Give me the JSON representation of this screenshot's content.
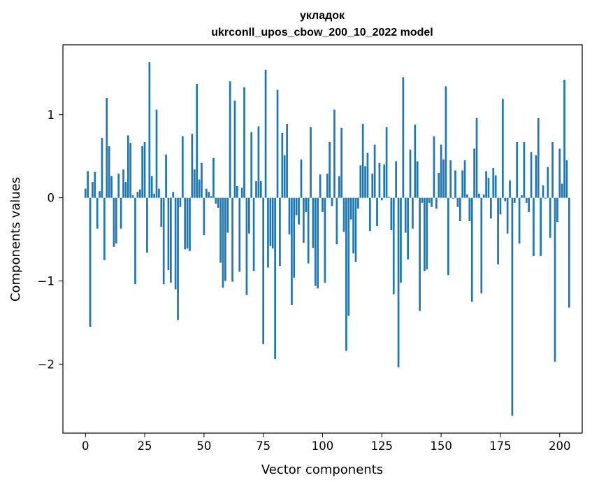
{
  "chart_data": {
    "type": "bar",
    "title_line1": "укладок",
    "title_line2": "ukrconll_upos_cbow_200_10_2022 model",
    "xlabel": "Vector components",
    "ylabel": "Components values",
    "xlim": [
      -9.5,
      209.5
    ],
    "ylim": [
      -2.83,
      1.84
    ],
    "xticks": [
      0,
      25,
      50,
      75,
      100,
      125,
      150,
      175,
      200
    ],
    "yticks": [
      -2,
      -1,
      0,
      1
    ],
    "ytick_labels": [
      "−2",
      "−1",
      "0",
      "1"
    ],
    "bar_color": "#1f77b4",
    "values": [
      0.11,
      0.32,
      -1.55,
      0.19,
      0.31,
      -0.37,
      0.08,
      0.72,
      -0.75,
      1.2,
      0.62,
      0.26,
      -0.59,
      -0.55,
      0.29,
      -0.37,
      0.34,
      0.19,
      0.75,
      0.66,
      0.03,
      -1.04,
      0.07,
      0.1,
      0.62,
      0.67,
      -0.66,
      1.63,
      0.26,
      0.05,
      1.06,
      0.11,
      -0.35,
      -1.04,
      0.52,
      -0.87,
      -1.02,
      0.07,
      -1.1,
      -1.47,
      -0.11,
      0.74,
      -0.62,
      -0.61,
      -0.64,
      0.77,
      0.34,
      1.37,
      0.22,
      0.42,
      -0.45,
      0.11,
      0.07,
      0.02,
      0.48,
      -0.07,
      -0.12,
      -0.78,
      -1.08,
      -1.0,
      -0.42,
      1.4,
      -1.01,
      1.17,
      0.14,
      -0.89,
      0.12,
      1.33,
      -1.17,
      -0.43,
      0.79,
      -0.88,
      0.2,
      0.86,
      0.2,
      -1.76,
      1.54,
      -0.84,
      -0.58,
      -0.61,
      -1.94,
      1.3,
      -0.82,
      0.78,
      0.51,
      0.89,
      -0.44,
      -1.29,
      -0.96,
      -0.21,
      -0.32,
      0.46,
      -0.54,
      -0.17,
      -0.79,
      0.85,
      -0.6,
      -1.06,
      -1.09,
      0.28,
      -0.17,
      -1.02,
      0.29,
      0.67,
      -0.1,
      1.06,
      -0.56,
      0.26,
      0.84,
      -0.41,
      -1.84,
      -1.42,
      -0.26,
      -0.67,
      -0.77,
      -0.13,
      0.39,
      0.89,
      0.38,
      0.54,
      -0.4,
      0.29,
      0.64,
      -0.34,
      0.42,
      -0.03,
      0.4,
      0.85,
      0.01,
      -0.39,
      -1.16,
      0.44,
      -2.04,
      -1.02,
      1.45,
      -0.42,
      -0.74,
      0.58,
      -0.37,
      0.88,
      0.44,
      -1.36,
      -0.06,
      -0.88,
      -0.86,
      -0.06,
      -0.11,
      0.74,
      -0.13,
      0.3,
      0.64,
      0.46,
      1.34,
      -0.93,
      0.45,
      -0.01,
      0.33,
      -0.11,
      -0.28,
      0.33,
      0.45,
      0.04,
      -0.28,
      -1.25,
      0.59,
      0.96,
      0.05,
      -1.15,
      0.04,
      0.32,
      0.24,
      -0.25,
      0.36,
      0.27,
      -0.8,
      -0.2,
      1.19,
      -0.04,
      -0.43,
      0.21,
      -2.62,
      -0.06,
      0.67,
      -0.55,
      0.03,
      0.67,
      -0.06,
      -0.17,
      0.55,
      -0.7,
      0.51,
      0.96,
      -0.7,
      0.15,
      -0.01,
      0.37,
      -0.48,
      0.67,
      -1.97,
      -0.29,
      0.59,
      0.17,
      1.42,
      0.45,
      -1.32
    ]
  }
}
